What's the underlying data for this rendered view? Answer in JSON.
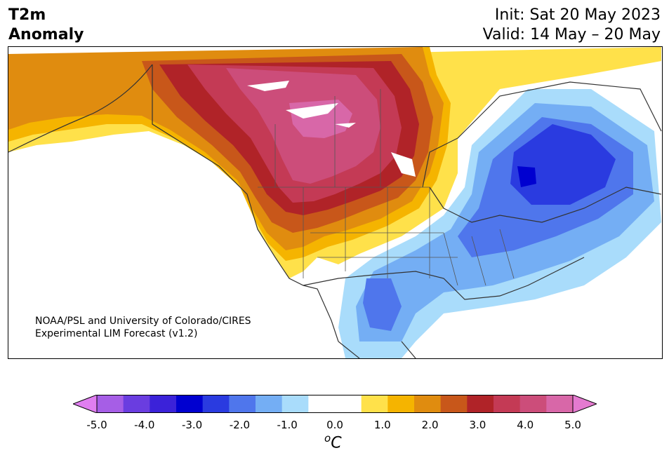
{
  "title": {
    "line1": "T2m",
    "line2": "Anomaly"
  },
  "dates": {
    "init": "Init: Sat 20 May 2023",
    "valid": "Valid: 14 May – 20 May"
  },
  "credit": {
    "line1": "NOAA/PSL and University of Colorado/CIRES",
    "line2": "Experimental LIM Forecast (v1.2)"
  },
  "colorbar": {
    "colors": [
      "#e07ef0",
      "#a65ee6",
      "#6a3de0",
      "#3b22d9",
      "#0000d0",
      "#2a3be0",
      "#4f76ec",
      "#74aef4",
      "#a9dcfb",
      "#ffffff",
      "#ffffff",
      "#ffe14a",
      "#f5b400",
      "#e08c0f",
      "#c8571a",
      "#b02328",
      "#c43a55",
      "#cc4d7a",
      "#d867a8",
      "#e47ad0"
    ],
    "ticks": [
      "-5.0",
      "-4.0",
      "-3.0",
      "-2.0",
      "-1.0",
      "0.0",
      "1.0",
      "2.0",
      "3.0",
      "4.0",
      "5.0"
    ],
    "unit_super": "o",
    "unit_base": "C"
  },
  "map": {
    "region": "North America",
    "variable": "2m temperature anomaly",
    "warm_region": "Western and central Canada",
    "cool_region": "Eastern Canada, Great Lakes, southern Plains"
  }
}
